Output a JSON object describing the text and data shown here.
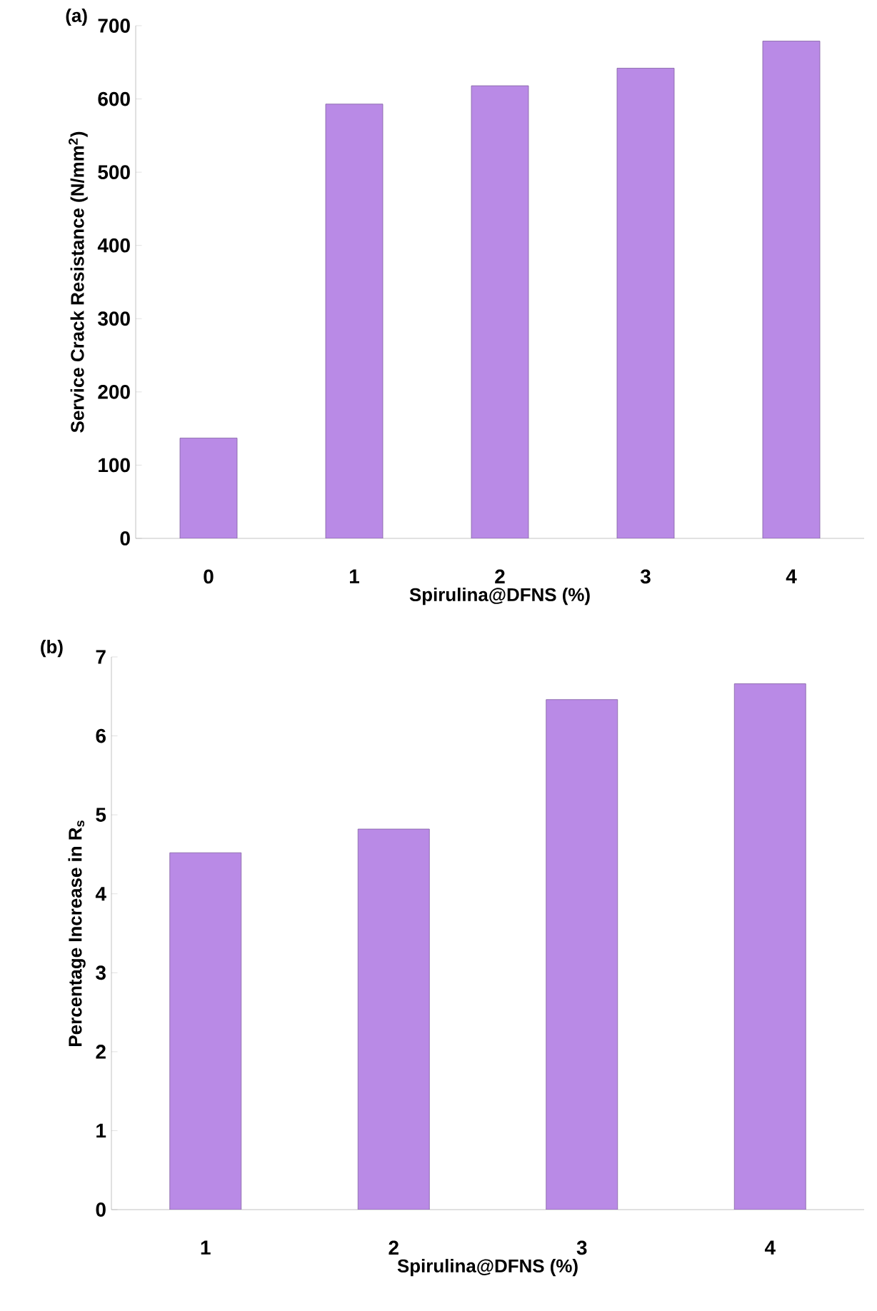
{
  "chart_data": [
    {
      "type": "bar",
      "title": "(a)",
      "xlabel": "Spirulina@DFNS (%)",
      "ylabel": "Service Crack Resistance (N/mm$^{2}$)",
      "categories": [
        "0",
        "1",
        "2",
        "3",
        "4"
      ],
      "values": [
        137,
        593,
        618,
        642,
        679
      ],
      "color": "#b98ae6",
      "ylim": [
        0,
        700
      ],
      "yticks": [
        0,
        100,
        200,
        300,
        400,
        500,
        600,
        700
      ]
    },
    {
      "type": "bar",
      "title": "(b)",
      "xlabel": "Spirulina@DFNS (%)",
      "ylabel": "Percentage Increase in R$_{s}$",
      "categories": [
        "1",
        "2",
        "3",
        "4"
      ],
      "values": [
        4.52,
        4.82,
        6.46,
        6.66
      ],
      "color": "#b98ae6",
      "ylim": [
        0,
        7
      ],
      "yticks": [
        0,
        1,
        2,
        3,
        4,
        5,
        6,
        7
      ]
    }
  ]
}
